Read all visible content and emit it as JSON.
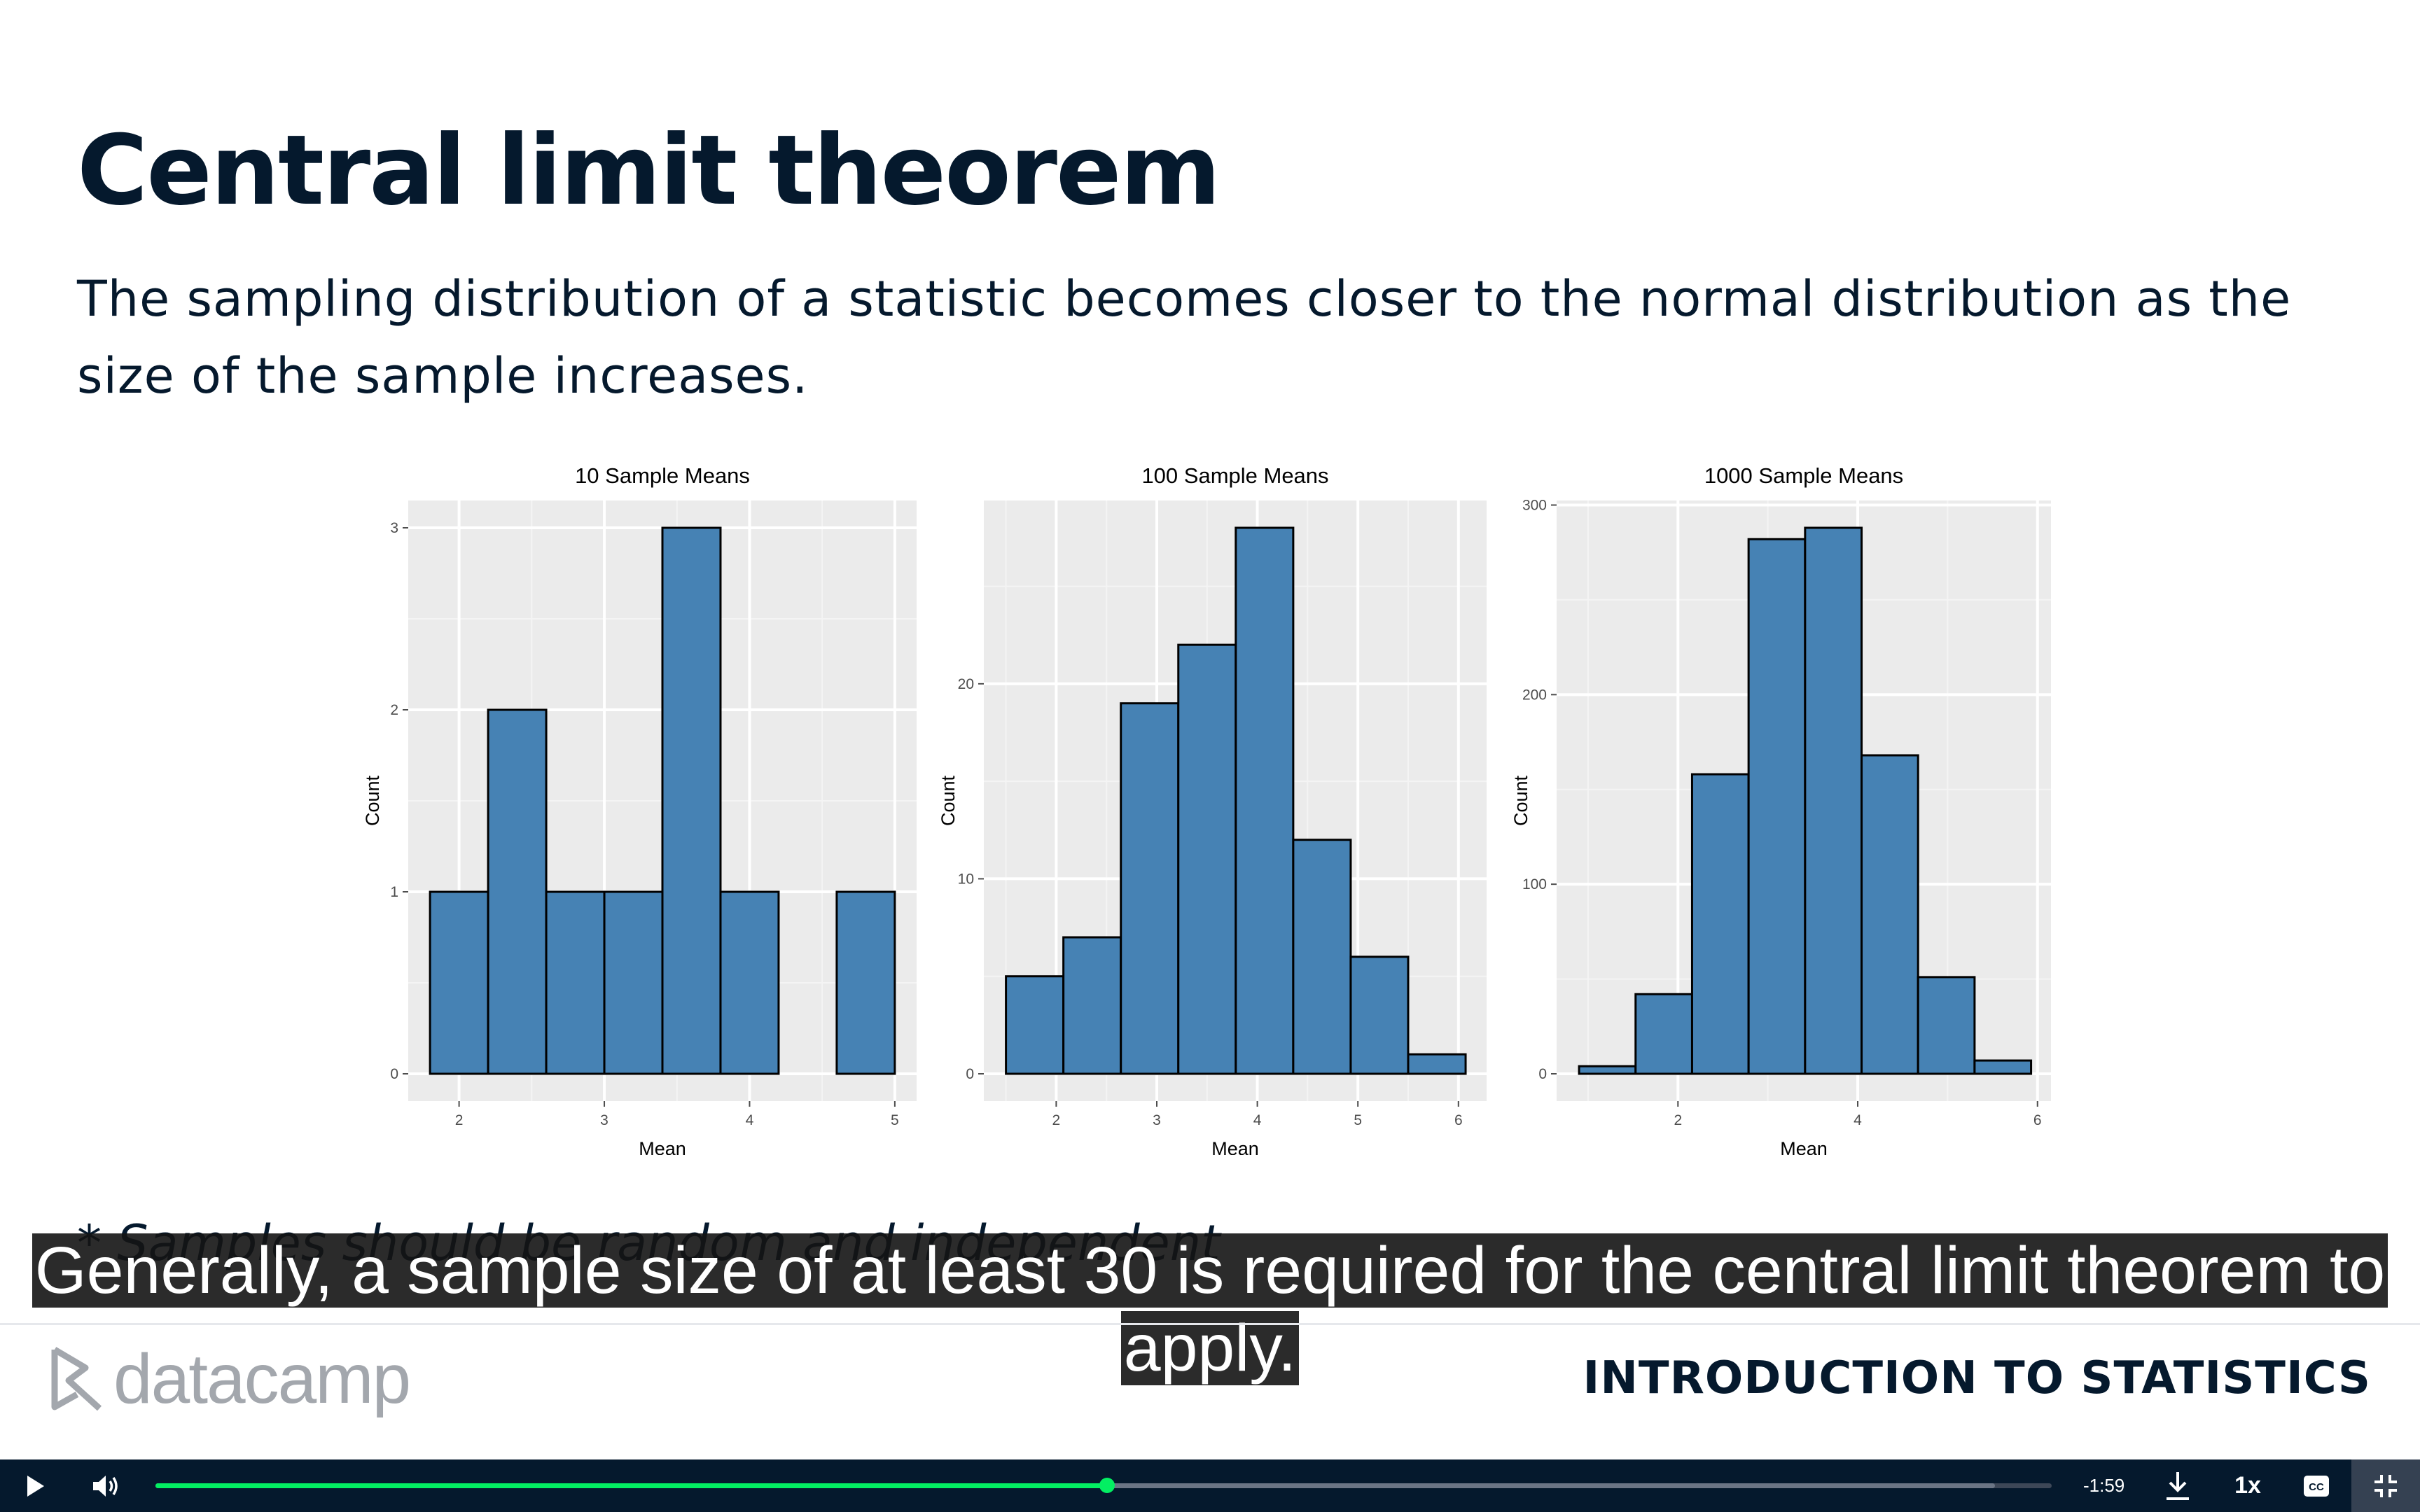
{
  "slide": {
    "title": "Central limit theorem",
    "description": "The sampling distribution of a statistic becomes closer to the normal distribution as the size of the sample increases.",
    "footnote": "* Samples should be random and independent",
    "caption": "Generally, a sample size of at least 30 is required for the central limit theorem to apply."
  },
  "footer": {
    "logo_text": "datacamp",
    "course_title": "INTRODUCTION TO STATISTICS"
  },
  "player": {
    "time_remaining": "-1:59",
    "speed": "1x",
    "progress": 0.502,
    "buffered": 0.97,
    "icons": [
      "play-icon",
      "volume-icon",
      "download-icon",
      "closed-captions-icon",
      "exit-fullscreen-icon"
    ],
    "colors": {
      "bar": "#05192d",
      "progress": "#03ef62"
    }
  },
  "chart_data": [
    {
      "type": "bar",
      "title": "10 Sample Means",
      "xlabel": "Mean",
      "ylabel": "Count",
      "bin_edges": [
        1.8,
        2.2,
        2.6,
        3.0,
        3.4,
        3.8,
        4.2,
        4.6,
        5.0
      ],
      "values": [
        1,
        2,
        1,
        1,
        3,
        1,
        0,
        1
      ],
      "xlim": [
        1.65,
        5.15
      ],
      "ylim": [
        -0.15,
        3.15
      ],
      "xticks": [
        2,
        3,
        4,
        5
      ],
      "yticks": [
        0,
        1,
        2,
        3
      ],
      "fill": "#4682b4",
      "grid": true
    },
    {
      "type": "bar",
      "title": "100 Sample Means",
      "xlabel": "Mean",
      "ylabel": "Count",
      "bin_edges": [
        1.5,
        2.0714,
        2.6429,
        3.2143,
        3.7857,
        4.3571,
        4.9286,
        5.5,
        6.0714
      ],
      "values": [
        5,
        7,
        19,
        22,
        28,
        12,
        6,
        1
      ],
      "xlim": [
        1.28,
        6.28
      ],
      "ylim": [
        -1.4,
        29.4
      ],
      "xticks": [
        2,
        3,
        4,
        5,
        6
      ],
      "yticks": [
        0,
        10,
        20
      ],
      "fill": "#4682b4",
      "grid": true
    },
    {
      "type": "bar",
      "title": "1000 Sample Means",
      "xlabel": "Mean",
      "ylabel": "Count",
      "bin_edges": [
        0.9,
        1.5286,
        2.1571,
        2.7857,
        3.4143,
        4.0429,
        4.6714,
        5.3,
        5.9286
      ],
      "values": [
        4,
        42,
        158,
        282,
        288,
        168,
        51,
        7
      ],
      "xlim": [
        0.65,
        6.15
      ],
      "ylim": [
        -14.4,
        302.4
      ],
      "xticks": [
        2,
        4,
        6
      ],
      "yticks": [
        0,
        100,
        200,
        300
      ],
      "fill": "#4682b4",
      "grid": true
    }
  ]
}
